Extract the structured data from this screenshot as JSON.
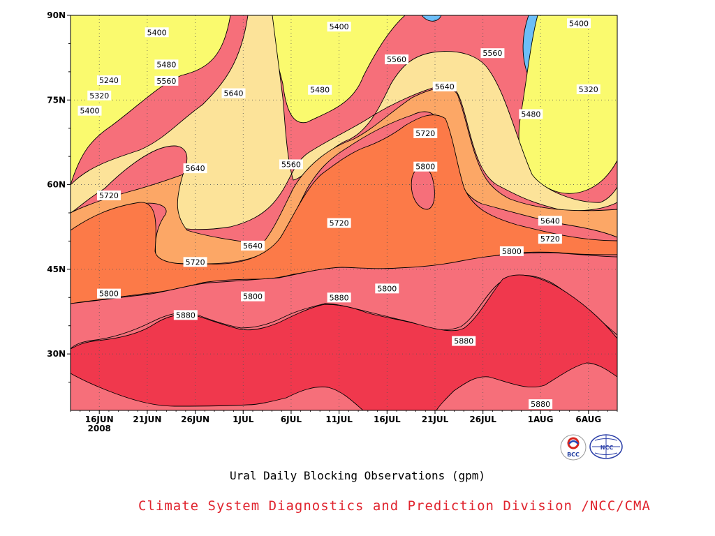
{
  "chart_data": {
    "type": "heatmap",
    "title": "Ural Daily Blocking Observations (gpm)",
    "source": "Climate System Diagnostics and Prediction Division /NCC/CMA",
    "x_ticks": [
      "16JUN",
      "21JUN",
      "26JUN",
      "1JUL",
      "6JUL",
      "11JUL",
      "16JUL",
      "21JUL",
      "26JUL",
      "1AUG",
      "6AUG"
    ],
    "x_year": "2008",
    "y_ticks": [
      "90N",
      "75N",
      "60N",
      "45N",
      "30N"
    ],
    "ylim_deg": [
      20,
      90
    ],
    "x_range": [
      "2008-06-13",
      "2008-08-09"
    ],
    "grid": "dotted",
    "levels": [
      5240,
      5320,
      5400,
      5480,
      5560,
      5640,
      5720,
      5800,
      5880
    ],
    "colors": [
      "#1e27d8",
      "#2e57e8",
      "#5889df",
      "#6cbef8",
      "#fafa6e",
      "#fce399",
      "#fca766",
      "#fc7a48",
      "#f66f7a",
      "#f0384d"
    ],
    "contour_labels": [
      {
        "text": "5400",
        "date": "2008-06-22",
        "lat": 87.0
      },
      {
        "text": "5480",
        "date": "2008-06-23",
        "lat": 81.3
      },
      {
        "text": "5560",
        "date": "2008-06-23",
        "lat": 78.4
      },
      {
        "text": "5240",
        "date": "2008-06-17",
        "lat": 78.5
      },
      {
        "text": "5320",
        "date": "2008-06-16",
        "lat": 75.8
      },
      {
        "text": "5400",
        "date": "2008-06-15",
        "lat": 73.1
      },
      {
        "text": "5640",
        "date": "2008-06-30",
        "lat": 76.2
      },
      {
        "text": "5400",
        "date": "2008-07-11",
        "lat": 88.0
      },
      {
        "text": "5480",
        "date": "2008-07-09",
        "lat": 76.8
      },
      {
        "text": "5560",
        "date": "2008-07-17",
        "lat": 82.2
      },
      {
        "text": "5560",
        "date": "2008-07-27",
        "lat": 83.3
      },
      {
        "text": "5640",
        "date": "2008-07-22",
        "lat": 77.4
      },
      {
        "text": "5400",
        "date": "2008-08-05",
        "lat": 88.6
      },
      {
        "text": "5320",
        "date": "2008-08-06",
        "lat": 76.9
      },
      {
        "text": "5480",
        "date": "2008-07-31",
        "lat": 72.5
      },
      {
        "text": "5720",
        "date": "2008-07-20",
        "lat": 69.1
      },
      {
        "text": "5800",
        "date": "2008-07-20",
        "lat": 63.2
      },
      {
        "text": "5640",
        "date": "2008-06-26",
        "lat": 62.9
      },
      {
        "text": "5560",
        "date": "2008-07-06",
        "lat": 63.6
      },
      {
        "text": "5720",
        "date": "2008-06-17",
        "lat": 58.1
      },
      {
        "text": "5720",
        "date": "2008-07-11",
        "lat": 53.2
      },
      {
        "text": "5640",
        "date": "2008-07-02",
        "lat": 49.2
      },
      {
        "text": "5640",
        "date": "2008-08-02",
        "lat": 53.6
      },
      {
        "text": "5720",
        "date": "2008-08-02",
        "lat": 50.4
      },
      {
        "text": "5720",
        "date": "2008-06-26",
        "lat": 46.3
      },
      {
        "text": "5800",
        "date": "2008-07-29",
        "lat": 48.2
      },
      {
        "text": "5800",
        "date": "2008-07-16",
        "lat": 41.6
      },
      {
        "text": "5800",
        "date": "2008-06-17",
        "lat": 40.7
      },
      {
        "text": "5800",
        "date": "2008-07-02",
        "lat": 40.2
      },
      {
        "text": "5880",
        "date": "2008-07-11",
        "lat": 40.0
      },
      {
        "text": "5880",
        "date": "2008-06-25",
        "lat": 36.9
      },
      {
        "text": "5880",
        "date": "2008-07-24",
        "lat": 32.3
      },
      {
        "text": "5880",
        "date": "2008-08-01",
        "lat": 21.1
      }
    ],
    "logos": [
      "BCC",
      "NCC"
    ]
  }
}
